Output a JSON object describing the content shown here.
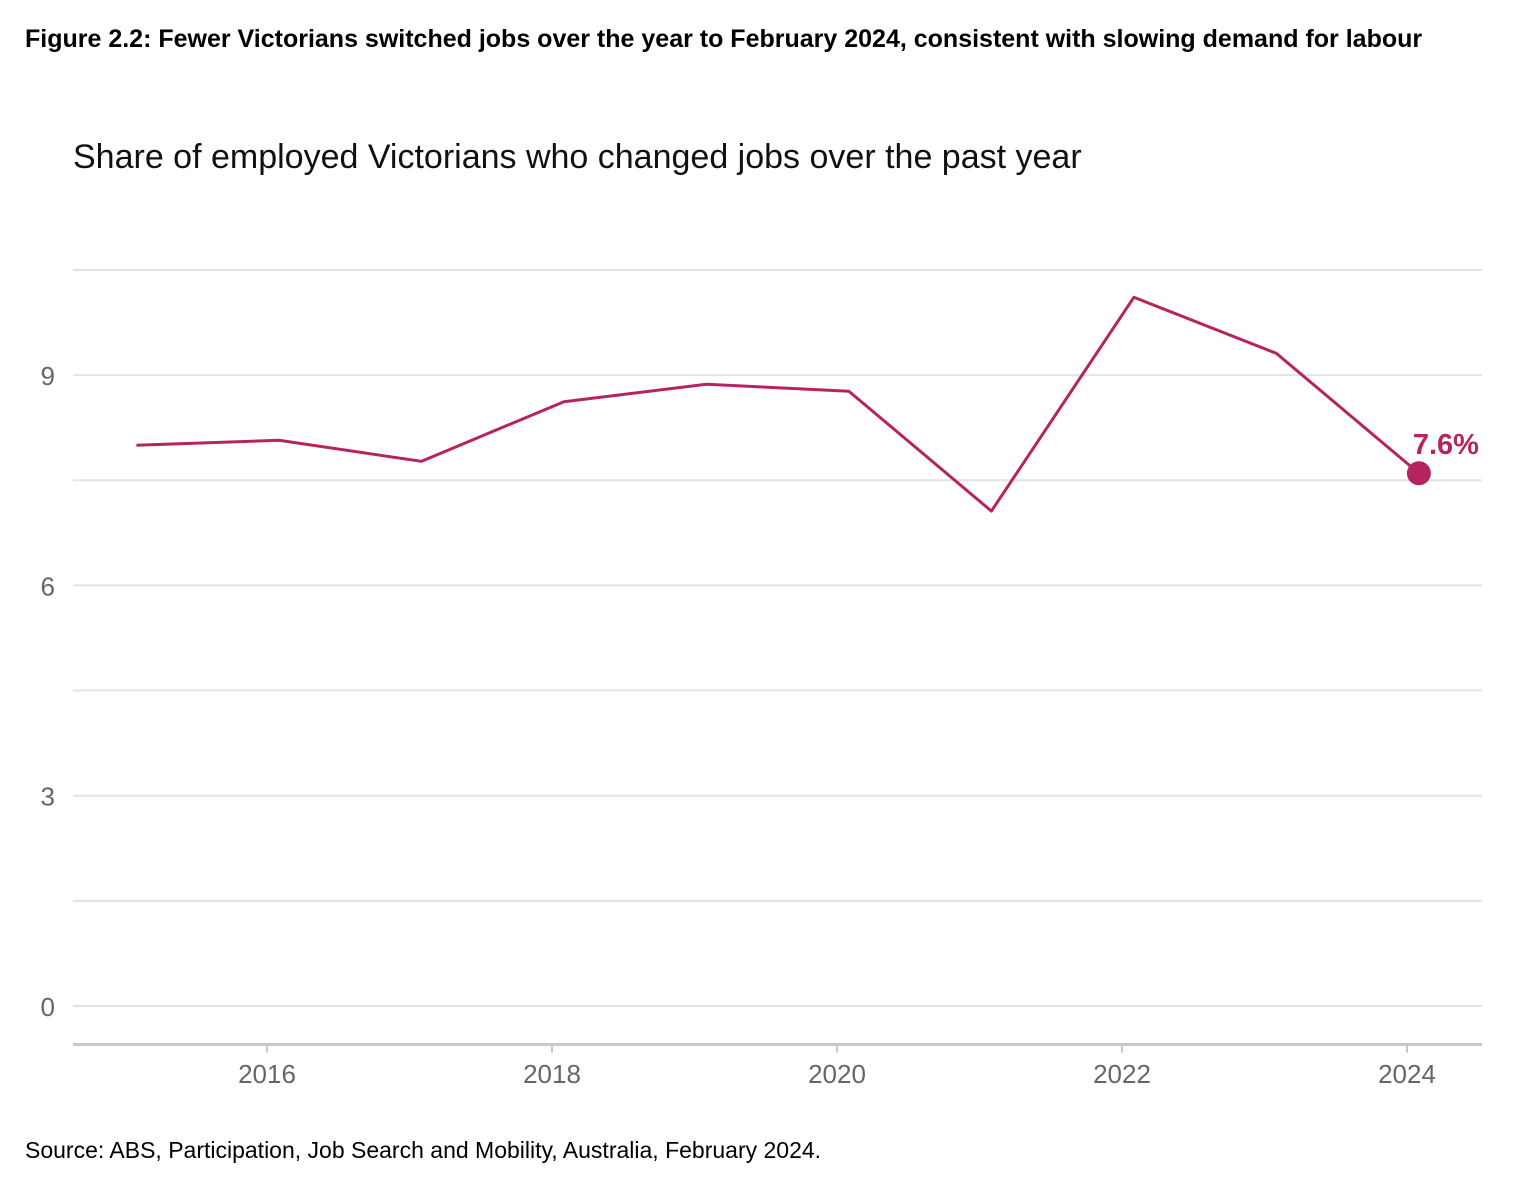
{
  "figure_title": "Figure 2.2: Fewer Victorians switched jobs over the year to February 2024, consistent with slowing demand for labour",
  "source": "Source: ABS, Participation, Job Search and Mobility, Australia, February 2024.",
  "chart_data": {
    "type": "line",
    "title": "Share of employed Victorians who changed jobs over the past year",
    "xlabel": "",
    "ylabel": "",
    "x": [
      "2015-02",
      "2016-02",
      "2017-02",
      "2018-02",
      "2019-02",
      "2020-02",
      "2021-02",
      "2022-02",
      "2023-02",
      "2024-02"
    ],
    "series": [
      {
        "values": [
          8.0,
          8.07,
          7.77,
          8.62,
          8.87,
          8.77,
          7.06,
          10.11,
          9.31,
          7.6
        ],
        "color": "#b5245f"
      }
    ],
    "end_label": "7.6%",
    "xticks": [
      "2016",
      "2018",
      "2020",
      "2022",
      "2024"
    ],
    "yticks": [
      "0",
      "3",
      "6",
      "9"
    ],
    "ylim": [
      -0.55,
      10.6
    ],
    "xlim": [
      "2014-10",
      "2024-07"
    ],
    "grid": true,
    "legend": "none"
  }
}
